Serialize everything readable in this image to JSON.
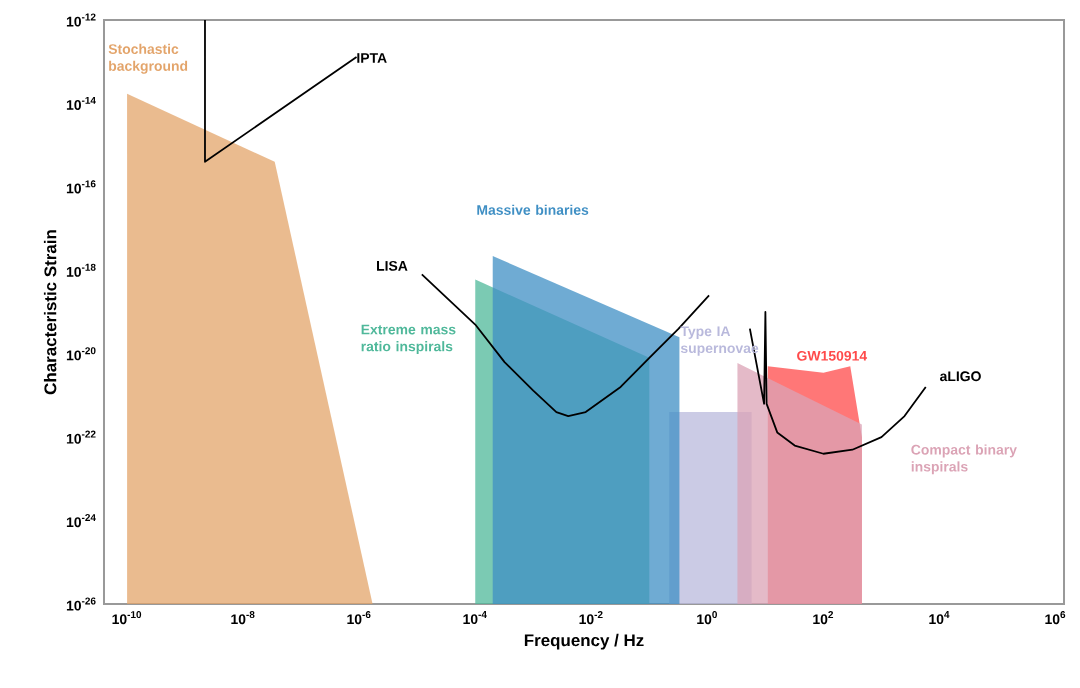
{
  "chart_data": {
    "type": "area",
    "log": "xy",
    "xlabel": "Frequency / Hz",
    "ylabel": "Characteristic Strain",
    "xlim": [
      4e-11,
      1400000.0
    ],
    "ylim": [
      1e-26,
      1e-12
    ],
    "xticks": [
      {
        "value": 1e-10,
        "label": "10$^{-10}$"
      },
      {
        "value": 1e-08,
        "label": "10$^{-8}$"
      },
      {
        "value": 1e-06,
        "label": "10$^{-6}$"
      },
      {
        "value": 0.0001,
        "label": "10$^{-4}$"
      },
      {
        "value": 0.01,
        "label": "10$^{-2}$"
      },
      {
        "value": 1,
        "label": "10$^{0}$"
      },
      {
        "value": 100,
        "label": "10$^{2}$"
      },
      {
        "value": 10000.0,
        "label": "10$^{4}$"
      },
      {
        "value": 1000000.0,
        "label": "10$^{6}$"
      }
    ],
    "yticks": [
      {
        "value": 1e-26,
        "label": "10$^{-26}$"
      },
      {
        "value": 1e-24,
        "label": "10$^{-24}$"
      },
      {
        "value": 1e-22,
        "label": "10$^{-22}$"
      },
      {
        "value": 1e-20,
        "label": "10$^{-20}$"
      },
      {
        "value": 1e-18,
        "label": "10$^{-18}$"
      },
      {
        "value": 1e-16,
        "label": "10$^{-16}$"
      },
      {
        "value": 1e-14,
        "label": "10$^{-14}$"
      },
      {
        "value": 1e-12,
        "label": "10$^{-12}$"
      }
    ],
    "series": [
      {
        "name": "Stochastic background",
        "color": "#e3a46a",
        "x": [
          1e-10,
          3.5e-08,
          1.7e-06
        ],
        "values": [
          1.7e-14,
          4e-16,
          1e-26
        ]
      },
      {
        "name": "Extreme mass ratio inspirals",
        "color": "#4fb89a",
        "x": [
          0.0001,
          0.1
        ],
        "values": [
          6e-19,
          8e-21
        ]
      },
      {
        "name": "Type IA supernovae",
        "color": "#b9b9dc",
        "x": [
          0.22,
          5.8
        ],
        "values": [
          4e-22,
          4e-22
        ]
      },
      {
        "name": "Massive binaries",
        "color": "#3f8fc4",
        "x": [
          0.0002,
          0.33
        ],
        "values": [
          2.2e-18,
          2.5e-20
        ]
      },
      {
        "name": "GW150914",
        "color": "#ff4a4a",
        "x": [
          11,
          100,
          290,
          460,
          460
        ],
        "values": [
          5e-21,
          3.5e-21,
          5e-21,
          1e-22,
          1e-26
        ]
      },
      {
        "name": "Compact binary inspirals",
        "color": "#dba3b5",
        "x": [
          3.3,
          460
        ],
        "values": [
          6e-21,
          2e-22
        ]
      },
      {
        "name": "IPTA",
        "type": "line",
        "color": "#000000",
        "x": [
          2.2e-09,
          2.2e-09,
          9e-07
        ],
        "values": [
          1e-12,
          4e-16,
          1.3e-13
        ]
      },
      {
        "name": "LISA",
        "type": "line",
        "color": "#000000",
        "x": [
          1.2e-05,
          0.0001,
          0.00032,
          0.001,
          0.0025,
          0.004,
          0.008,
          0.032,
          0.1,
          0.32,
          1.07
        ],
        "values": [
          8e-19,
          5e-20,
          6.3e-21,
          1.3e-21,
          4e-22,
          3.2e-22,
          4e-22,
          1.6e-21,
          8e-21,
          4e-20,
          2.5e-19
        ]
      },
      {
        "name": "aLIGO",
        "type": "line",
        "color": "#000000",
        "x": [
          5.4,
          9.5,
          10,
          10.5,
          16,
          32,
          100,
          316,
          1000,
          2500,
          5800
        ],
        "values": [
          4e-20,
          6.3e-22,
          1e-19,
          6.3e-22,
          1.3e-22,
          6.3e-23,
          4e-23,
          5e-23,
          1e-22,
          3.2e-22,
          1.6e-21
        ]
      }
    ]
  }
}
